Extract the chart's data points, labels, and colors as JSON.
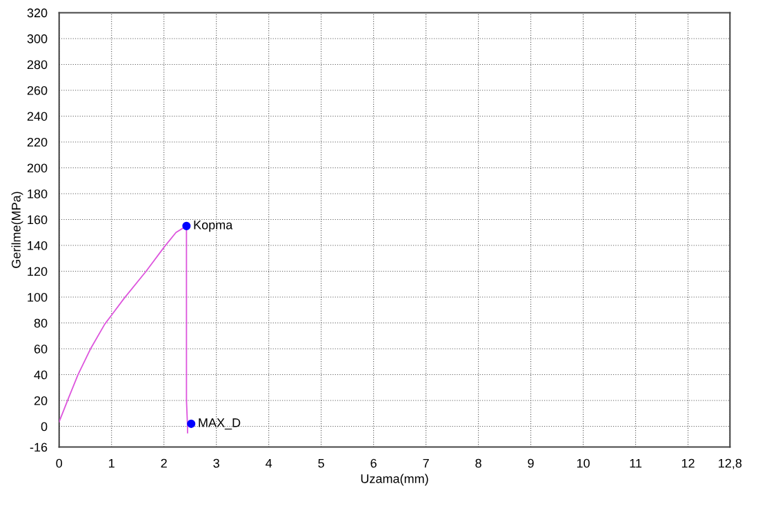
{
  "chart_data": {
    "type": "line",
    "xlabel": "Uzama(mm)",
    "ylabel": "Gerilme(MPa)",
    "series": [
      {
        "color": "#dd55dd",
        "x": [
          0,
          0.18,
          0.36,
          0.6,
          0.87,
          1.0,
          1.24,
          1.66,
          2.01,
          2.23,
          2.43,
          2.43,
          2.45,
          2.45
        ],
        "values": [
          3.5,
          22,
          40,
          60,
          79,
          86,
          99,
          120,
          139,
          150,
          155,
          20,
          0,
          -5
        ]
      },
      {
        "type": "scatter",
        "color": "#0000ff",
        "marker": "circle",
        "x": [
          2.43,
          2.52
        ],
        "values": [
          155,
          2
        ]
      }
    ],
    "annotations": [
      {
        "text": "Kopma",
        "x": 2.43,
        "y": 155
      },
      {
        "text": "MAX_D",
        "x": 2.52,
        "y": 2
      }
    ],
    "xlim": [
      0,
      12.8
    ],
    "xticks": [
      0,
      1,
      2,
      3,
      4,
      5,
      6,
      7,
      8,
      9,
      10,
      11,
      12,
      {
        "value": 12.8,
        "label": "12,8"
      }
    ],
    "ylim": [
      -16,
      320
    ],
    "yticks": [
      -16,
      0,
      20,
      40,
      60,
      80,
      100,
      120,
      140,
      160,
      180,
      200,
      220,
      240,
      260,
      280,
      300,
      320
    ],
    "grid": true,
    "line_style": "solid"
  }
}
